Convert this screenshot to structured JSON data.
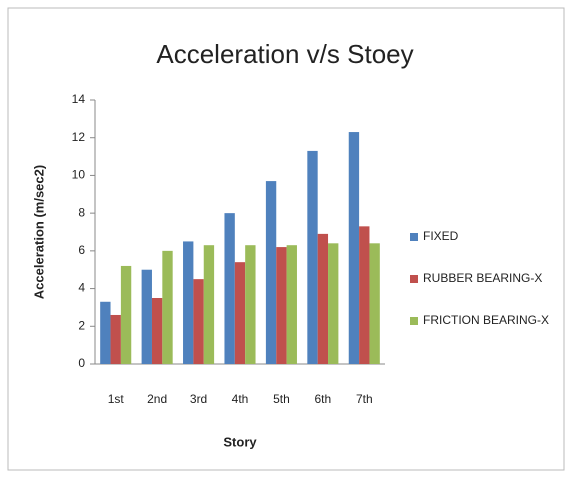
{
  "chart_data": {
    "type": "bar",
    "title": "Acceleration v/s Stoey",
    "x_label": "Story",
    "y_label": "Acceleration (m/sec2)",
    "categories": [
      "1st",
      "2nd",
      "3rd",
      "4th",
      "5th",
      "6th",
      "7th"
    ],
    "series": [
      {
        "name": "FIXED",
        "color": "#4f81bd",
        "values": [
          3.3,
          5.0,
          6.5,
          8.0,
          9.7,
          11.3,
          12.3
        ]
      },
      {
        "name": "RUBBER BEARING-X",
        "color": "#c0504d",
        "values": [
          2.6,
          3.5,
          4.5,
          5.4,
          6.2,
          6.9,
          7.3
        ]
      },
      {
        "name": "FRICTION BEARING-X",
        "color": "#9bbb59",
        "values": [
          5.2,
          6.0,
          6.3,
          6.3,
          6.3,
          6.4,
          6.4
        ]
      }
    ],
    "ylim": [
      0,
      14
    ],
    "yticks": [
      0,
      2,
      4,
      6,
      8,
      10,
      12,
      14
    ],
    "grid": false,
    "legend": "right"
  }
}
